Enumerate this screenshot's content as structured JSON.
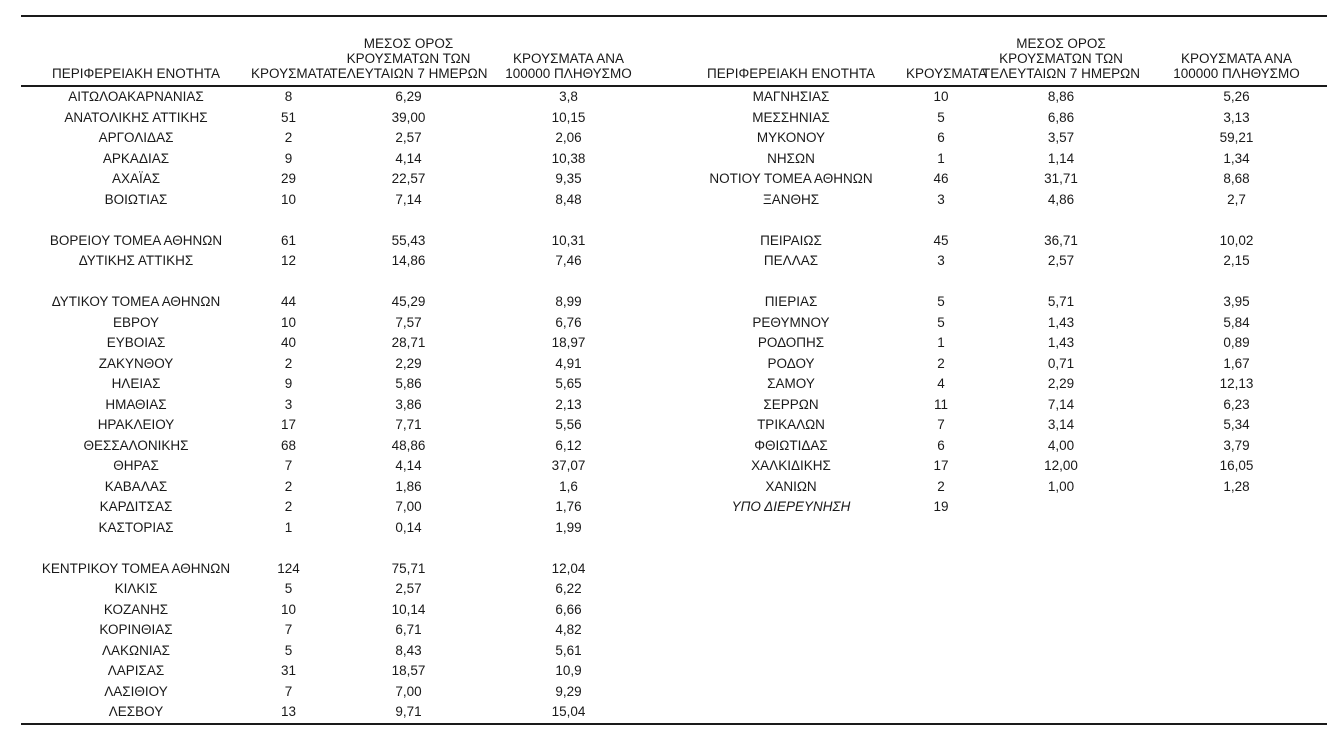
{
  "colors": {
    "background": "#ffffff",
    "text": "#1a1a1a",
    "rule_lines": "#1a1a1a"
  },
  "table": {
    "headers": {
      "region": "ΠΕΡΙΦΕΡΕΙΑΚΗ ΕΝΟΤΗΤΑ",
      "cases": "ΚΡΟΥΣΜΑΤΑ",
      "avg7_lines": [
        "ΜΕΣΟΣ ΟΡΟΣ",
        "ΚΡΟΥΣΜΑΤΩΝ ΤΩΝ",
        "ΤΕΛΕΥΤΑΙΩΝ 7 ΗΜΕΡΩΝ"
      ],
      "per100k_lines": [
        "ΚΡΟΥΣΜΑΤΑ ΑΝΑ",
        "100000 ΠΛΗΘΥΣΜΟ"
      ]
    },
    "rows": [
      {
        "left": {
          "region": "ΑΙΤΩΛΟΑΚΑΡΝΑΝΙΑΣ",
          "cases": "8",
          "avg7": "6,29",
          "per100k": "3,8"
        },
        "right": {
          "region": "ΜΑΓΝΗΣΙΑΣ",
          "cases": "10",
          "avg7": "8,86",
          "per100k": "5,26"
        }
      },
      {
        "left": {
          "region": "ΑΝΑΤΟΛΙΚΗΣ ΑΤΤΙΚΗΣ",
          "cases": "51",
          "avg7": "39,00",
          "per100k": "10,15"
        },
        "right": {
          "region": "ΜΕΣΣΗΝΙΑΣ",
          "cases": "5",
          "avg7": "6,86",
          "per100k": "3,13"
        }
      },
      {
        "left": {
          "region": "ΑΡΓΟΛΙΔΑΣ",
          "cases": "2",
          "avg7": "2,57",
          "per100k": "2,06"
        },
        "right": {
          "region": "ΜΥΚΟΝΟΥ",
          "cases": "6",
          "avg7": "3,57",
          "per100k": "59,21"
        }
      },
      {
        "left": {
          "region": "ΑΡΚΑΔΙΑΣ",
          "cases": "9",
          "avg7": "4,14",
          "per100k": "10,38"
        },
        "right": {
          "region": "ΝΗΣΩΝ",
          "cases": "1",
          "avg7": "1,14",
          "per100k": "1,34"
        }
      },
      {
        "left": {
          "region": "ΑΧΑΪΑΣ",
          "cases": "29",
          "avg7": "22,57",
          "per100k": "9,35"
        },
        "right": {
          "region": "ΝΟΤΙΟΥ ΤΟΜΕΑ ΑΘΗΝΩΝ",
          "cases": "46",
          "avg7": "31,71",
          "per100k": "8,68"
        }
      },
      {
        "left": {
          "region": "ΒΟΙΩΤΙΑΣ",
          "cases": "10",
          "avg7": "7,14",
          "per100k": "8,48"
        },
        "right": {
          "region": "ΞΑΝΘΗΣ",
          "cases": "3",
          "avg7": "4,86",
          "per100k": "2,7"
        }
      },
      {
        "left": null,
        "right": null
      },
      {
        "left": {
          "region": "ΒΟΡΕΙΟΥ ΤΟΜΕΑ ΑΘΗΝΩΝ",
          "cases": "61",
          "avg7": "55,43",
          "per100k": "10,31"
        },
        "right": {
          "region": "ΠΕΙΡΑΙΩΣ",
          "cases": "45",
          "avg7": "36,71",
          "per100k": "10,02"
        }
      },
      {
        "left": {
          "region": "ΔΥΤΙΚΗΣ ΑΤΤΙΚΗΣ",
          "cases": "12",
          "avg7": "14,86",
          "per100k": "7,46"
        },
        "right": {
          "region": "ΠΕΛΛΑΣ",
          "cases": "3",
          "avg7": "2,57",
          "per100k": "2,15"
        }
      },
      {
        "left": null,
        "right": null
      },
      {
        "left": {
          "region": "ΔΥΤΙΚΟΥ ΤΟΜΕΑ ΑΘΗΝΩΝ",
          "cases": "44",
          "avg7": "45,29",
          "per100k": "8,99"
        },
        "right": {
          "region": "ΠΙΕΡΙΑΣ",
          "cases": "5",
          "avg7": "5,71",
          "per100k": "3,95"
        }
      },
      {
        "left": {
          "region": "ΕΒΡΟΥ",
          "cases": "10",
          "avg7": "7,57",
          "per100k": "6,76"
        },
        "right": {
          "region": "ΡΕΘΥΜΝΟΥ",
          "cases": "5",
          "avg7": "1,43",
          "per100k": "5,84"
        }
      },
      {
        "left": {
          "region": "ΕΥΒΟΙΑΣ",
          "cases": "40",
          "avg7": "28,71",
          "per100k": "18,97"
        },
        "right": {
          "region": "ΡΟΔΟΠΗΣ",
          "cases": "1",
          "avg7": "1,43",
          "per100k": "0,89"
        }
      },
      {
        "left": {
          "region": "ΖΑΚΥΝΘΟΥ",
          "cases": "2",
          "avg7": "2,29",
          "per100k": "4,91"
        },
        "right": {
          "region": "ΡΟΔΟΥ",
          "cases": "2",
          "avg7": "0,71",
          "per100k": "1,67"
        }
      },
      {
        "left": {
          "region": "ΗΛΕΙΑΣ",
          "cases": "9",
          "avg7": "5,86",
          "per100k": "5,65"
        },
        "right": {
          "region": "ΣΑΜΟΥ",
          "cases": "4",
          "avg7": "2,29",
          "per100k": "12,13"
        }
      },
      {
        "left": {
          "region": "ΗΜΑΘΙΑΣ",
          "cases": "3",
          "avg7": "3,86",
          "per100k": "2,13"
        },
        "right": {
          "region": "ΣΕΡΡΩΝ",
          "cases": "11",
          "avg7": "7,14",
          "per100k": "6,23"
        }
      },
      {
        "left": {
          "region": "ΗΡΑΚΛΕΙΟΥ",
          "cases": "17",
          "avg7": "7,71",
          "per100k": "5,56"
        },
        "right": {
          "region": "ΤΡΙΚΑΛΩΝ",
          "cases": "7",
          "avg7": "3,14",
          "per100k": "5,34"
        }
      },
      {
        "left": {
          "region": "ΘΕΣΣΑΛΟΝΙΚΗΣ",
          "cases": "68",
          "avg7": "48,86",
          "per100k": "6,12"
        },
        "right": {
          "region": "ΦΘΙΩΤΙΔΑΣ",
          "cases": "6",
          "avg7": "4,00",
          "per100k": "3,79"
        }
      },
      {
        "left": {
          "region": "ΘΗΡΑΣ",
          "cases": "7",
          "avg7": "4,14",
          "per100k": "37,07"
        },
        "right": {
          "region": "ΧΑΛΚΙΔΙΚΗΣ",
          "cases": "17",
          "avg7": "12,00",
          "per100k": "16,05"
        }
      },
      {
        "left": {
          "region": "ΚΑΒΑΛΑΣ",
          "cases": "2",
          "avg7": "1,86",
          "per100k": "1,6"
        },
        "right": {
          "region": "ΧΑΝΙΩΝ",
          "cases": "2",
          "avg7": "1,00",
          "per100k": "1,28"
        }
      },
      {
        "left": {
          "region": "ΚΑΡΔΙΤΣΑΣ",
          "cases": "2",
          "avg7": "7,00",
          "per100k": "1,76"
        },
        "right": {
          "region": "ΥΠΟ ΔΙΕΡΕΥΝΗΣΗ",
          "cases": "19",
          "avg7": "",
          "per100k": "",
          "italic": true
        }
      },
      {
        "left": {
          "region": "ΚΑΣΤΟΡΙΑΣ",
          "cases": "1",
          "avg7": "0,14",
          "per100k": "1,99"
        },
        "right": null
      },
      {
        "left": null,
        "right": null
      },
      {
        "left": {
          "region": "ΚΕΝΤΡΙΚΟΥ ΤΟΜΕΑ ΑΘΗΝΩΝ",
          "cases": "124",
          "avg7": "75,71",
          "per100k": "12,04"
        },
        "right": null
      },
      {
        "left": {
          "region": "ΚΙΛΚΙΣ",
          "cases": "5",
          "avg7": "2,57",
          "per100k": "6,22"
        },
        "right": null
      },
      {
        "left": {
          "region": "ΚΟΖΑΝΗΣ",
          "cases": "10",
          "avg7": "10,14",
          "per100k": "6,66"
        },
        "right": null
      },
      {
        "left": {
          "region": "ΚΟΡΙΝΘΙΑΣ",
          "cases": "7",
          "avg7": "6,71",
          "per100k": "4,82"
        },
        "right": null
      },
      {
        "left": {
          "region": "ΛΑΚΩΝΙΑΣ",
          "cases": "5",
          "avg7": "8,43",
          "per100k": "5,61"
        },
        "right": null
      },
      {
        "left": {
          "region": "ΛΑΡΙΣΑΣ",
          "cases": "31",
          "avg7": "18,57",
          "per100k": "10,9"
        },
        "right": null
      },
      {
        "left": {
          "region": "ΛΑΣΙΘΙΟΥ",
          "cases": "7",
          "avg7": "7,00",
          "per100k": "9,29"
        },
        "right": null
      },
      {
        "left": {
          "region": "ΛΕΣΒΟΥ",
          "cases": "13",
          "avg7": "9,71",
          "per100k": "15,04"
        },
        "right": null
      }
    ]
  }
}
